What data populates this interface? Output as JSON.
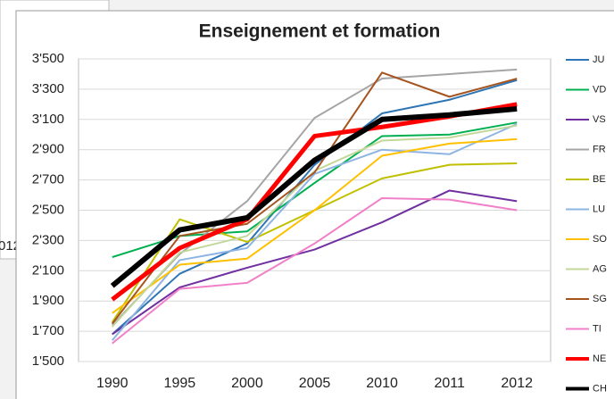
{
  "background_fragment": "012",
  "chart_data": {
    "type": "line",
    "title": "Enseignement et formation",
    "categories": [
      "1990",
      "1995",
      "2000",
      "2005",
      "2010",
      "2011",
      "2012"
    ],
    "ylim": [
      1500,
      3500
    ],
    "yticks": [
      {
        "value": 1500,
        "label": "1'500"
      },
      {
        "value": 1700,
        "label": "1'700"
      },
      {
        "value": 1900,
        "label": "1'900"
      },
      {
        "value": 2100,
        "label": "2'100"
      },
      {
        "value": 2300,
        "label": "2'300"
      },
      {
        "value": 2500,
        "label": "2'500"
      },
      {
        "value": 2700,
        "label": "2'700"
      },
      {
        "value": 2900,
        "label": "2'900"
      },
      {
        "value": 3100,
        "label": "3'100"
      },
      {
        "value": 3300,
        "label": "3'300"
      },
      {
        "value": 3500,
        "label": "3'500"
      }
    ],
    "grid": true,
    "legend": "right",
    "series": [
      {
        "name": "JU",
        "color": "#2e75b6",
        "line_width": 2,
        "values": [
          1680,
          2080,
          2280,
          2800,
          3140,
          3230,
          3360
        ]
      },
      {
        "name": "VD",
        "color": "#00b050",
        "line_width": 2,
        "values": [
          2190,
          2330,
          2360,
          2680,
          2990,
          3000,
          3080
        ]
      },
      {
        "name": "VS",
        "color": "#7030a0",
        "line_width": 2,
        "values": [
          1680,
          1990,
          2120,
          2240,
          2420,
          2630,
          2560
        ]
      },
      {
        "name": "FR",
        "color": "#a5a5a5",
        "line_width": 2,
        "values": [
          1740,
          2210,
          2560,
          3110,
          3370,
          3400,
          3430
        ]
      },
      {
        "name": "BE",
        "color": "#c0c000",
        "line_width": 2,
        "values": [
          1760,
          2440,
          2290,
          2500,
          2710,
          2800,
          2810
        ]
      },
      {
        "name": "LU",
        "color": "#8db4e2",
        "line_width": 2,
        "values": [
          1640,
          2170,
          2250,
          2740,
          2900,
          2870,
          3070
        ]
      },
      {
        "name": "SO",
        "color": "#ffc000",
        "line_width": 2,
        "values": [
          1820,
          2140,
          2180,
          2500,
          2860,
          2940,
          2970
        ]
      },
      {
        "name": "AG",
        "color": "#c4d79b",
        "line_width": 2,
        "values": [
          1730,
          2220,
          2330,
          2760,
          2960,
          2980,
          3060
        ]
      },
      {
        "name": "SG",
        "color": "#a5541e",
        "line_width": 2,
        "values": [
          1750,
          2330,
          2410,
          2750,
          3410,
          3250,
          3370
        ]
      },
      {
        "name": "TI",
        "color": "#f080c8",
        "line_width": 2,
        "values": [
          1620,
          1980,
          2020,
          2280,
          2580,
          2570,
          2500
        ]
      },
      {
        "name": "NE",
        "color": "#ff0000",
        "line_width": 5,
        "values": [
          1910,
          2250,
          2440,
          2990,
          3050,
          3120,
          3200
        ]
      },
      {
        "name": "CH",
        "color": "#000000",
        "line_width": 6,
        "values": [
          2000,
          2370,
          2450,
          2830,
          3100,
          3130,
          3170
        ]
      }
    ]
  }
}
